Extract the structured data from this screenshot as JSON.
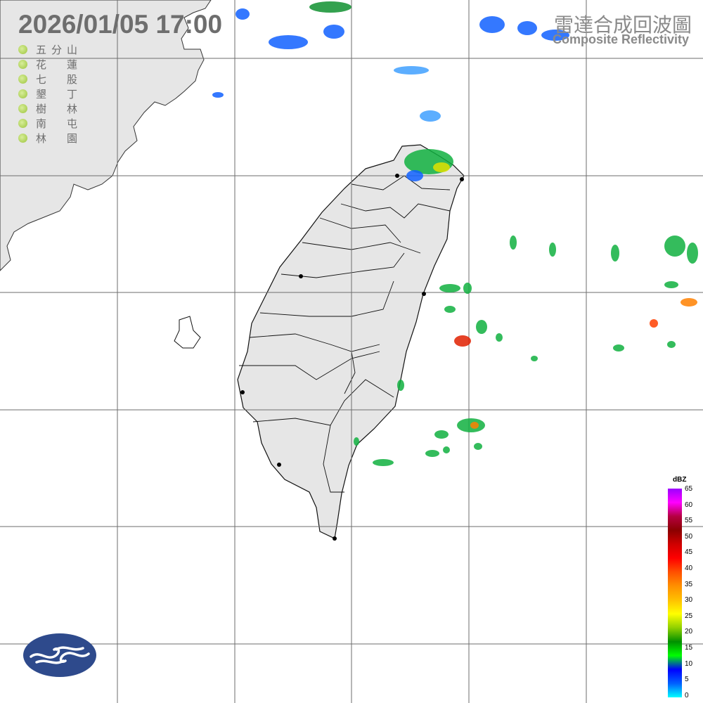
{
  "timestamp": "2026/01/05  17:00",
  "title": {
    "zh": "雷達合成回波圖",
    "en": "Composite Reflectivity"
  },
  "stations": [
    {
      "name": "五分山"
    },
    {
      "name": "花蓮"
    },
    {
      "name": "七股"
    },
    {
      "name": "墾丁"
    },
    {
      "name": "樹林"
    },
    {
      "name": "南屯"
    },
    {
      "name": "林園"
    }
  ],
  "colorbar": {
    "unit": "dBZ",
    "labels": [
      "65",
      "60",
      "55",
      "50",
      "45",
      "40",
      "35",
      "30",
      "25",
      "20",
      "15",
      "10",
      "5",
      "0"
    ],
    "colors": [
      "#9b00ff",
      "#ff00ff",
      "#b40040",
      "#8b0000",
      "#d00000",
      "#ff0000",
      "#ff5000",
      "#ff9000",
      "#ffc000",
      "#ffff00",
      "#90d000",
      "#009000",
      "#00ff00",
      "#0000ff",
      "#0060ff",
      "#00ffff"
    ]
  },
  "colors": {
    "land": "#e6e6e6",
    "grid": "#6e6e6e",
    "logo": "#2e4a8c"
  }
}
